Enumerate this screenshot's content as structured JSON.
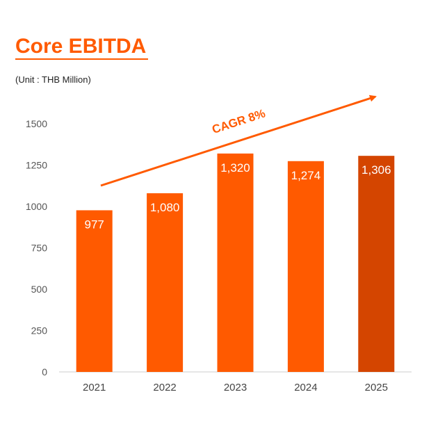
{
  "header": {
    "title": "Core EBITDA",
    "unit": "(Unit : THB Million)"
  },
  "colors": {
    "accent": "#ff5a00",
    "highlight_bar": "#d44500",
    "axis": "#cccccc"
  },
  "chart_data": {
    "type": "bar",
    "title": "Core EBITDA",
    "xlabel": "",
    "ylabel": "",
    "categories": [
      "2021",
      "2022",
      "2023",
      "2024",
      "2025"
    ],
    "values": [
      977,
      1080,
      1320,
      1274,
      1306
    ],
    "value_labels": [
      "977",
      "1,080",
      "1,320",
      "1,274",
      "1,306"
    ],
    "yticks": [
      "0",
      "250",
      "500",
      "750",
      "1000",
      "1250",
      "1500"
    ],
    "ylim": [
      0,
      1500
    ],
    "highlight_index": 4,
    "annotation": "CAGR 8%"
  }
}
